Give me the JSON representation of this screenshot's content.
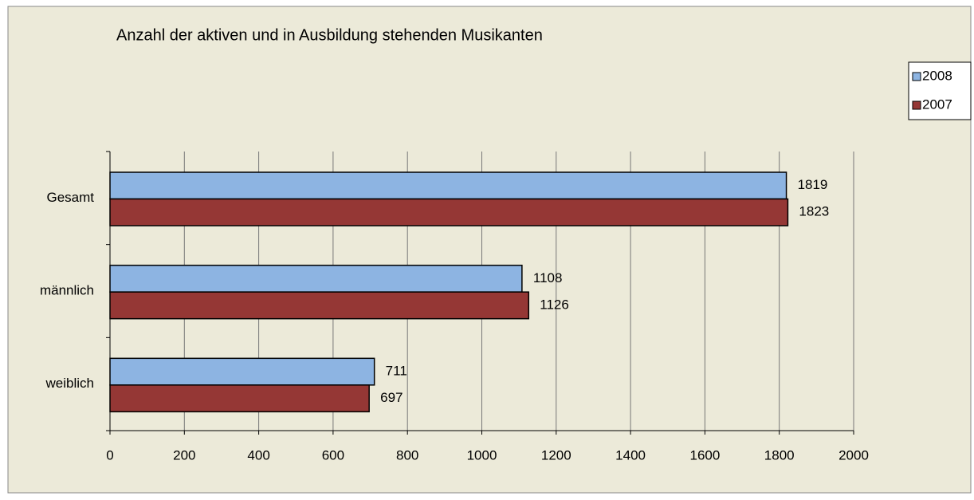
{
  "chart_data": {
    "type": "hbar",
    "title": "Anzahl der aktiven und in Ausbildung stehenden Musikanten",
    "categories": [
      "Gesamt",
      "männlich",
      "weiblich"
    ],
    "series": [
      {
        "name": "2008",
        "color": "#8db4e2",
        "values": [
          1819,
          1108,
          711
        ]
      },
      {
        "name": "2007",
        "color": "#953735",
        "values": [
          1823,
          1126,
          697
        ]
      }
    ],
    "xlim": [
      0,
      2000
    ],
    "xticks": [
      0,
      200,
      400,
      600,
      800,
      1000,
      1200,
      1400,
      1600,
      1800,
      2000
    ],
    "grid": true,
    "legend": "right"
  }
}
